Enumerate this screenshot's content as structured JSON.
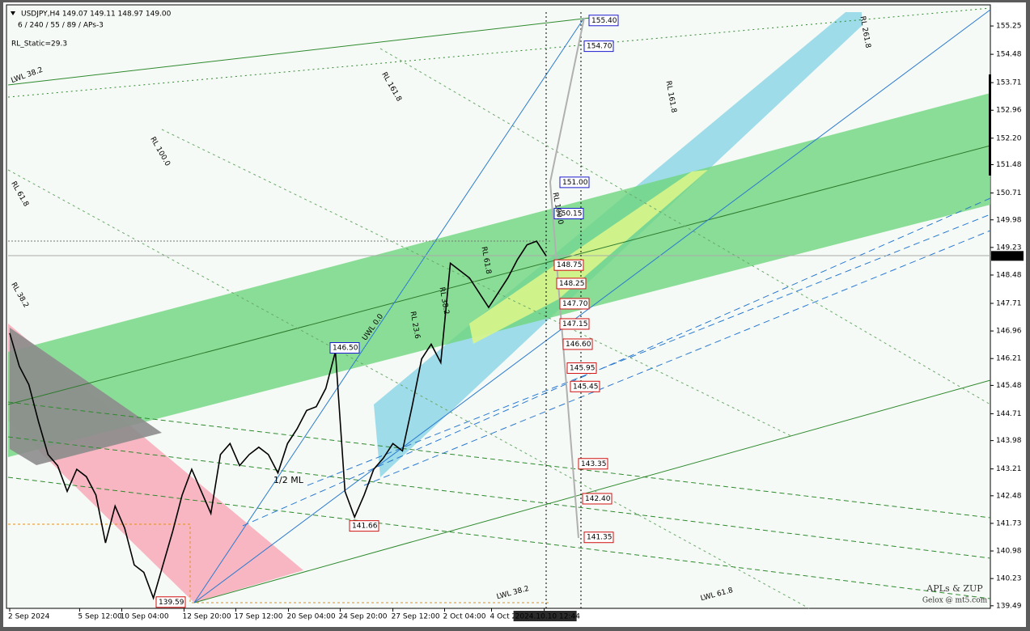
{
  "header": {
    "symbol_line": "USDJPY,H4  149.07 149.11 148.97 149.00",
    "params": "6 / 240 / 55 / 89 / APs-3",
    "rl_static": "RL_Static=29.3"
  },
  "chart_data": {
    "type": "line",
    "color": "#000000",
    "x": [
      0,
      1,
      2,
      3,
      4,
      5,
      6,
      7,
      8,
      9,
      10,
      11,
      12,
      13,
      14,
      15,
      16,
      17,
      18,
      19,
      20,
      21,
      22,
      23,
      24,
      25,
      26,
      27,
      28,
      29,
      30,
      31,
      32,
      33,
      34,
      35,
      36,
      37,
      38,
      39,
      40,
      41,
      42,
      43,
      44,
      45,
      46,
      47,
      48,
      49,
      50,
      51,
      52,
      53,
      54,
      55,
      56
    ],
    "values": [
      146.9,
      146.0,
      145.5,
      144.5,
      143.6,
      143.3,
      142.6,
      143.2,
      143.0,
      142.5,
      141.2,
      142.2,
      141.6,
      140.6,
      140.4,
      139.7,
      140.6,
      141.5,
      142.5,
      143.2,
      142.6,
      142.0,
      143.6,
      143.9,
      143.3,
      143.6,
      143.8,
      143.6,
      143.1,
      143.9,
      144.3,
      144.8,
      144.9,
      145.4,
      146.4,
      142.6,
      141.9,
      142.5,
      143.2,
      143.5,
      143.9,
      143.7,
      144.9,
      146.2,
      146.6,
      146.1,
      148.8,
      148.6,
      148.4,
      148.0,
      147.6,
      148.0,
      148.4,
      148.9,
      149.3,
      149.4,
      149.0
    ],
    "xlim": [
      0,
      56
    ],
    "xticks": [
      {
        "value": 0,
        "label": "2 Sep 2024"
      },
      {
        "value": 7.3,
        "label": "5 Sep 12:00"
      },
      {
        "value": 11.7,
        "label": "10 Sep 04:00"
      },
      {
        "value": 18.2,
        "label": "12 Sep 20:00"
      },
      {
        "value": 23.6,
        "label": "17 Sep 12:00"
      },
      {
        "value": 29.1,
        "label": "20 Sep 04:00"
      },
      {
        "value": 34.5,
        "label": "24 Sep 20:00"
      },
      {
        "value": 40,
        "label": "27 Sep 12:00"
      },
      {
        "value": 45.4,
        "label": "2 Oct 04:00"
      },
      {
        "value": 50.3,
        "label": "4 Oct 20:00"
      },
      {
        "value": 55.8,
        "label": "2024.10.10 12:44"
      }
    ],
    "ylim": [
      139.42,
      155.78
    ],
    "yticks": [
      {
        "value": 155.25,
        "label": "155.25"
      },
      {
        "value": 154.48,
        "label": "154.48"
      },
      {
        "value": 153.71,
        "label": "153.71"
      },
      {
        "value": 152.96,
        "label": "152.96"
      },
      {
        "value": 152.2,
        "label": "152.20"
      },
      {
        "value": 151.48,
        "label": "151.48"
      },
      {
        "value": 150.71,
        "label": "150.71"
      },
      {
        "value": 149.98,
        "label": "149.98"
      },
      {
        "value": 149.23,
        "label": "149.23"
      },
      {
        "value": 148.48,
        "label": "148.48"
      },
      {
        "value": 147.71,
        "label": "147.71"
      },
      {
        "value": 146.96,
        "label": "146.96"
      },
      {
        "value": 146.21,
        "label": "146.21"
      },
      {
        "value": 145.48,
        "label": "145.48"
      },
      {
        "value": 144.71,
        "label": "144.71"
      },
      {
        "value": 143.98,
        "label": "143.98"
      },
      {
        "value": 143.21,
        "label": "143.21"
      },
      {
        "value": 142.48,
        "label": "142.48"
      },
      {
        "value": 141.73,
        "label": "141.73"
      },
      {
        "value": 140.98,
        "label": "140.98"
      },
      {
        "value": 140.23,
        "label": "140.23"
      },
      {
        "value": 139.49,
        "label": "139.49"
      }
    ],
    "current_price": {
      "value": 149,
      "label": "149.00"
    },
    "price_labels": [
      {
        "value": 155.4,
        "label": "155.40",
        "color": "#1a1acc"
      },
      {
        "value": 154.7,
        "label": "154.70",
        "color": "#1a1acc"
      },
      {
        "value": 151,
        "label": "151.00",
        "color": "#1a1acc"
      },
      {
        "value": 150.15,
        "label": "150.15",
        "color": "#1a1acc"
      },
      {
        "value": 146.5,
        "label": "146.50",
        "color": "#1a1acc"
      },
      {
        "value": 148.75,
        "label": "148.75",
        "color": "#d01010"
      },
      {
        "value": 148.25,
        "label": "148.25",
        "color": "#d01010"
      },
      {
        "value": 147.7,
        "label": "147.70",
        "color": "#d01010"
      },
      {
        "value": 147.15,
        "label": "147.15",
        "color": "#d01010"
      },
      {
        "value": 146.6,
        "label": "146.60",
        "color": "#d01010"
      },
      {
        "value": 145.95,
        "label": "145.95",
        "color": "#d01010"
      },
      {
        "value": 145.45,
        "label": "145.45",
        "color": "#d01010"
      },
      {
        "value": 143.35,
        "label": "143.35",
        "color": "#d01010"
      },
      {
        "value": 142.4,
        "label": "142.40",
        "color": "#d01010"
      },
      {
        "value": 141.35,
        "label": "141.35",
        "color": "#d01010"
      },
      {
        "value": 141.66,
        "label": "141.66",
        "color": "#d01010"
      },
      {
        "value": 139.59,
        "label": "139.59",
        "color": "#d01010"
      }
    ],
    "annotations": [
      {
        "text": "LWL 38.2",
        "color": "#3a8a3a"
      },
      {
        "text": "RL 61.8",
        "color": "#3a8a3a"
      },
      {
        "text": "RL 100.0",
        "color": "#3a8a3a"
      },
      {
        "text": "RL 161.8",
        "color": "#3a8a3a"
      },
      {
        "text": "RL 38.2",
        "color": "#3a8a3a"
      },
      {
        "text": "UWL 0.0",
        "color": "#2a7ad0"
      },
      {
        "text": "RL 23.6",
        "color": "#2a7ad0"
      },
      {
        "text": "RL 38.2",
        "color": "#2a7ad0"
      },
      {
        "text": "RL 61.8",
        "color": "#2a7ad0"
      },
      {
        "text": "RL 161.8",
        "color": "#2a7ad0"
      },
      {
        "text": "1/2 ML",
        "color": "#2a7ad0"
      },
      {
        "text": "LWL 38.2",
        "color": "#3a8a3a"
      },
      {
        "text": "LWL 61.8",
        "color": "#3a8a3a"
      },
      {
        "text": "RL 100.0",
        "color": "#2a7ad0"
      },
      {
        "text": "RL 261.8",
        "color": "#2a7ad0"
      }
    ],
    "watermark": [
      "APLs & ZUP",
      "Gelox @ mt5.com"
    ]
  }
}
